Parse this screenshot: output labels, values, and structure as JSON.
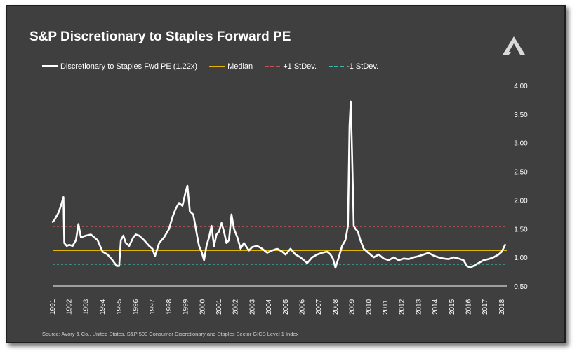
{
  "title": "S&P Discretionary to Staples Forward PE",
  "source": "Source: Avory & Co., United States, S&P 500 Consumer Discretionary and Staples Sector GICS Level 1 Index",
  "colors": {
    "background": "#3f3f3f",
    "series": "#ffffff",
    "median": "#e3b400",
    "plus_std": "#c0525a",
    "minus_std": "#3fb8a6"
  },
  "chart_data": {
    "type": "line",
    "title": "S&P Discretionary to Staples Forward PE",
    "xlabel": "",
    "ylabel": "",
    "x_ticks": [
      "1991",
      "1992",
      "1993",
      "1994",
      "1995",
      "1996",
      "1997",
      "1998",
      "1999",
      "2000",
      "2001",
      "2002",
      "2003",
      "2004",
      "2005",
      "2006",
      "2007",
      "2008",
      "2009",
      "2010",
      "2011",
      "2012",
      "2013",
      "2014",
      "2015",
      "2016",
      "2017",
      "2018"
    ],
    "y_ticks": [
      "0.50",
      "1.00",
      "1.50",
      "2.00",
      "2.50",
      "3.00",
      "3.50",
      "4.00"
    ],
    "ylim": [
      0.5,
      4.0
    ],
    "xlim": [
      1991,
      2018.3
    ],
    "y_axis_side": "right",
    "legend_position": "top-left",
    "grid": false,
    "series": [
      {
        "name": "Discretionary to Staples Fwd PE  (1.22x)",
        "style": "solid",
        "x": [
          1991.0,
          1991.1,
          1991.2,
          1991.35,
          1991.5,
          1991.6,
          1991.65,
          1991.7,
          1991.85,
          1992.0,
          1992.2,
          1992.4,
          1992.55,
          1992.7,
          1993.0,
          1993.3,
          1993.5,
          1993.7,
          1994.0,
          1994.3,
          1994.6,
          1994.85,
          1995.0,
          1995.1,
          1995.25,
          1995.4,
          1995.6,
          1995.85,
          1996.0,
          1996.2,
          1996.5,
          1996.8,
          1997.0,
          1997.15,
          1997.4,
          1997.7,
          1998.0,
          1998.2,
          1998.4,
          1998.6,
          1998.8,
          1999.0,
          1999.1,
          1999.25,
          1999.45,
          1999.55,
          1999.7,
          1999.8,
          1999.95,
          2000.1,
          2000.25,
          2000.4,
          2000.55,
          2000.7,
          2000.85,
          2001.0,
          2001.15,
          2001.3,
          2001.45,
          2001.6,
          2001.75,
          2001.9,
          2002.1,
          2002.3,
          2002.5,
          2002.8,
          2003.0,
          2003.3,
          2003.6,
          2003.9,
          2004.2,
          2004.5,
          2004.8,
          2005.0,
          2005.3,
          2005.6,
          2005.9,
          2006.1,
          2006.3,
          2006.6,
          2006.9,
          2007.2,
          2007.5,
          2007.7,
          2007.85,
          2008.0,
          2008.2,
          2008.4,
          2008.6,
          2008.75,
          2008.85,
          2008.92,
          2009.0,
          2009.1,
          2009.2,
          2009.35,
          2009.5,
          2009.7,
          2009.9,
          2010.1,
          2010.3,
          2010.6,
          2010.9,
          2011.2,
          2011.5,
          2011.8,
          2012.1,
          2012.4,
          2012.7,
          2013.0,
          2013.3,
          2013.6,
          2013.9,
          2014.2,
          2014.5,
          2014.8,
          2015.1,
          2015.4,
          2015.7,
          2015.9,
          2016.1,
          2016.3,
          2016.6,
          2016.9,
          2017.2,
          2017.5,
          2017.8,
          2018.0,
          2018.2
        ],
        "values": [
          1.62,
          1.65,
          1.7,
          1.78,
          1.9,
          2.0,
          2.05,
          1.25,
          1.2,
          1.22,
          1.2,
          1.3,
          1.58,
          1.35,
          1.38,
          1.4,
          1.35,
          1.3,
          1.1,
          1.05,
          0.95,
          0.85,
          0.85,
          1.3,
          1.38,
          1.25,
          1.2,
          1.35,
          1.4,
          1.38,
          1.3,
          1.2,
          1.15,
          1.02,
          1.25,
          1.35,
          1.5,
          1.7,
          1.85,
          1.95,
          1.9,
          2.15,
          2.25,
          1.8,
          1.75,
          1.6,
          1.35,
          1.2,
          1.1,
          0.95,
          1.2,
          1.35,
          1.55,
          1.2,
          1.4,
          1.45,
          1.6,
          1.45,
          1.25,
          1.3,
          1.75,
          1.5,
          1.35,
          1.15,
          1.25,
          1.12,
          1.18,
          1.2,
          1.15,
          1.08,
          1.12,
          1.15,
          1.1,
          1.05,
          1.15,
          1.05,
          1.0,
          0.95,
          0.9,
          1.0,
          1.05,
          1.08,
          1.1,
          1.05,
          0.98,
          0.82,
          1.0,
          1.2,
          1.3,
          1.55,
          3.3,
          3.72,
          2.8,
          1.55,
          1.5,
          1.45,
          1.3,
          1.15,
          1.1,
          1.05,
          1.0,
          1.05,
          0.98,
          0.95,
          1.0,
          0.95,
          0.98,
          0.97,
          1.0,
          1.02,
          1.05,
          1.08,
          1.03,
          1.0,
          0.98,
          0.97,
          1.0,
          0.98,
          0.95,
          0.85,
          0.82,
          0.85,
          0.9,
          0.95,
          0.97,
          1.0,
          1.05,
          1.1,
          1.22
        ]
      },
      {
        "name": "Median",
        "style": "solid",
        "value": 1.12
      },
      {
        "name": "+1 StDev.",
        "style": "dashed",
        "value": 1.54
      },
      {
        "name": "-1 StDev.",
        "style": "dashed",
        "value": 0.88
      }
    ]
  }
}
